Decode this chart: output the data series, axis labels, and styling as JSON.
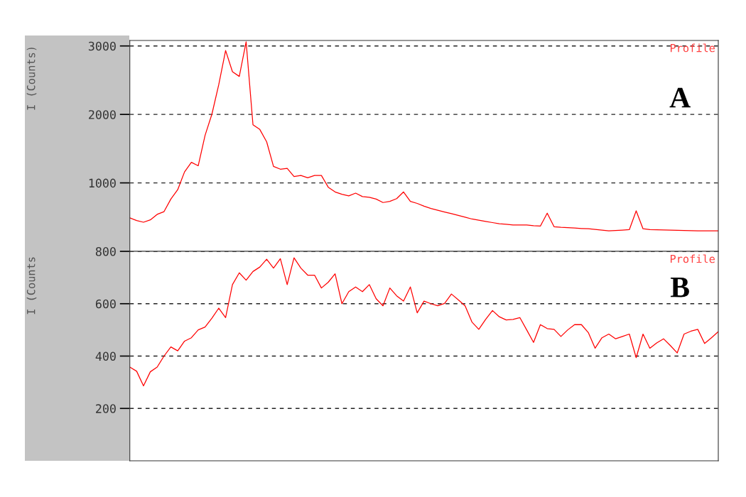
{
  "chart_data": [
    {
      "type": "line",
      "ylabel": "I (Counts)",
      "annotations": [
        "Profile",
        "A"
      ],
      "ylim": [
        0,
        3080
      ],
      "categories": [
        null,
        null,
        null,
        null,
        null,
        null,
        null,
        null,
        null,
        null,
        null,
        null,
        null,
        null,
        null,
        null,
        null,
        null,
        null,
        null,
        null,
        null,
        null,
        null,
        null,
        null,
        null,
        null,
        null,
        null,
        null,
        null,
        null,
        null,
        null,
        null,
        null,
        null,
        null,
        null,
        null,
        null,
        null,
        null,
        null,
        null,
        null,
        null,
        null,
        null,
        null,
        null,
        null,
        null,
        null,
        null,
        null,
        null,
        null,
        null,
        null,
        null,
        null,
        null,
        null,
        null,
        null,
        null,
        null,
        null,
        null,
        null,
        null,
        null,
        null,
        null,
        null,
        null,
        null,
        null,
        null,
        null,
        null,
        null,
        null,
        null,
        null
      ],
      "yticks": [
        1000,
        2000,
        3000
      ],
      "grid": "y",
      "tick_labels": "y",
      "series": [
        {
          "color": "#ff0000",
          "values": [
            490,
            450,
            425,
            460,
            540,
            580,
            764,
            900,
            1160,
            1300,
            1250,
            1694,
            2004,
            2435,
            2934,
            2624,
            2555,
            3060,
            1849,
            1780,
            1600,
            1240,
            1200,
            1212,
            1092,
            1108,
            1074,
            1108,
            1108,
            937,
            868,
            834,
            810,
            850,
            800,
            790,
            764,
            713,
            730,
            770,
            868,
            730,
            700,
            660,
            627,
            600,
            575,
            550,
            524,
            500,
            472,
            455,
            437,
            420,
            403,
            395,
            385,
            385,
            385,
            375,
            369,
            558,
            360,
            351,
            345,
            340,
            334,
            330,
            320,
            310,
            300,
            305,
            310,
            317,
            592,
            330,
            317,
            315,
            312,
            310,
            308,
            305,
            302,
            300,
            300,
            300,
            300
          ]
        }
      ]
    },
    {
      "type": "line",
      "ylabel": "I (Counts",
      "annotations": [
        "Profile",
        "B"
      ],
      "ylim": [
        0,
        800
      ],
      "categories": [
        null,
        null,
        null,
        null,
        null,
        null,
        null,
        null,
        null,
        null,
        null,
        null,
        null,
        null,
        null,
        null,
        null,
        null,
        null,
        null,
        null,
        null,
        null,
        null,
        null,
        null,
        null,
        null,
        null,
        null,
        null,
        null,
        null,
        null,
        null,
        null,
        null,
        null,
        null,
        null,
        null,
        null,
        null,
        null,
        null,
        null,
        null,
        null,
        null,
        null,
        null,
        null,
        null,
        null,
        null,
        null,
        null,
        null,
        null,
        null,
        null,
        null,
        null,
        null,
        null,
        null,
        null,
        null,
        null,
        null,
        null,
        null,
        null,
        null,
        null,
        null,
        null,
        null,
        null,
        null,
        null,
        null,
        null,
        null,
        null,
        null,
        null
      ],
      "yticks": [
        200,
        400,
        600,
        800
      ],
      "grid": "y",
      "tick_labels": "y",
      "series": [
        {
          "color": "#ff0000",
          "values": [
            358,
            342,
            286,
            340,
            358,
            400,
            435,
            420,
            457,
            470,
            500,
            511,
            545,
            583,
            547,
            673,
            718,
            690,
            723,
            740,
            770,
            736,
            772,
            673,
            775,
            736,
            709,
            709,
            660,
            682,
            714,
            600,
            646,
            664,
            646,
            673,
            619,
            592,
            660,
            630,
            610,
            664,
            565,
            610,
            600,
            592,
            601,
            637,
            615,
            592,
            530,
            502,
            540,
            574,
            550,
            538,
            540,
            547,
            500,
            452,
            520,
            505,
            502,
            475,
            500,
            520,
            520,
            490,
            430,
            470,
            484,
            466,
            475,
            484,
            394,
            484,
            430,
            450,
            466,
            440,
            412,
            484,
            495,
            502,
            448,
            470,
            493
          ]
        }
      ]
    }
  ]
}
